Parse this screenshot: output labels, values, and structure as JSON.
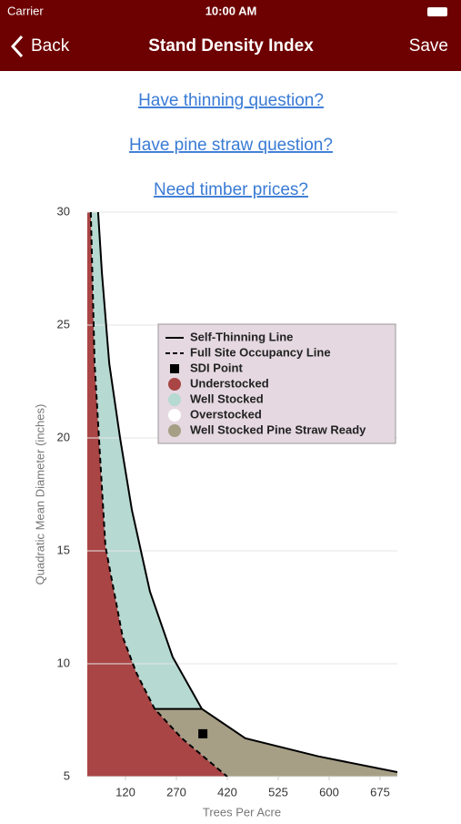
{
  "status_bar": {
    "carrier": "Carrier",
    "time": "10:00 AM"
  },
  "nav": {
    "back": "Back",
    "title": "Stand Density Index",
    "save": "Save"
  },
  "links": [
    "Have thinning question?",
    "Have pine straw question?",
    "Need timber prices?"
  ],
  "chart_data": {
    "type": "line",
    "x_label": "Trees Per Acre",
    "y_label": "Quadratic Mean Diameter (inches)",
    "xlim": [
      0,
      700
    ],
    "ylim": [
      5,
      30
    ],
    "xticks": [
      120,
      270,
      420,
      525,
      600,
      675
    ],
    "yticks": [
      5,
      10,
      15,
      20,
      25,
      30
    ],
    "grid": true,
    "legend": "upper-right",
    "threshold": 8,
    "series": [
      {
        "name": "Self-Thinning Line",
        "color": "#000000",
        "dash": false,
        "x": [
          34,
          46,
          69,
          103,
          139,
          192,
          259,
          345,
          457,
          584,
          700
        ],
        "values": [
          30,
          27.3,
          23.3,
          20,
          16.8,
          13.2,
          10.3,
          8,
          6.7,
          5.9,
          5.2
        ]
      },
      {
        "name": "Full Site Occupancy Line",
        "color": "#000000",
        "dash": true,
        "x": [
          11,
          23,
          40,
          57,
          111,
          152,
          206,
          286,
          420
        ],
        "values": [
          30,
          23.3,
          19.2,
          15.2,
          11.2,
          9.6,
          8,
          6.7,
          5
        ]
      },
      {
        "name": "SDI Point",
        "color": "#000000",
        "marker": "square",
        "x": [
          348
        ],
        "values": [
          6.9
        ]
      }
    ],
    "regions": [
      {
        "name": "Understocked",
        "color": "#a94545"
      },
      {
        "name": "Well Stocked",
        "color": "#b6d9d1"
      },
      {
        "name": "Overstocked",
        "color": "#ffffff"
      },
      {
        "name": "Well Stocked Pine Straw Ready",
        "color": "#a69f86"
      }
    ]
  }
}
